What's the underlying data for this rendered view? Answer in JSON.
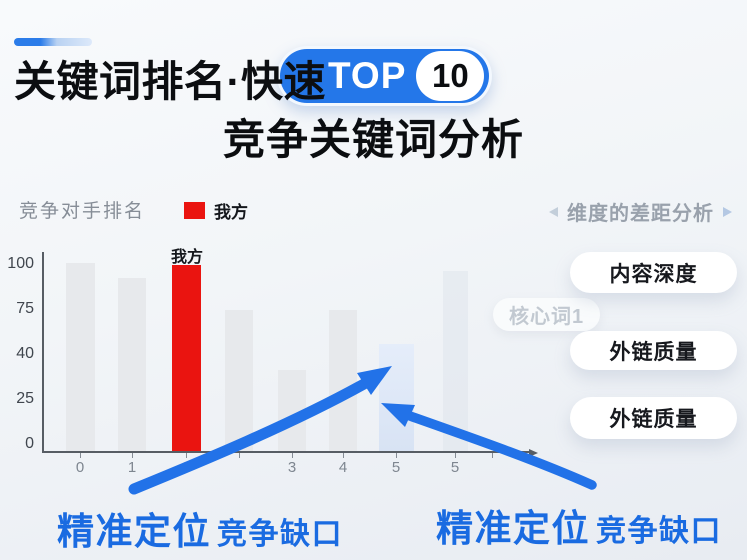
{
  "colors": {
    "accent_blue": "#2b7ce9",
    "badge_blue": "#2477e9",
    "arrow_blue": "#2272e8",
    "bar_red": "#ea1410",
    "bar_gray": "#e7e9ec",
    "bar_highlight": "#dce6f4",
    "bar_ghost": "#e9ecf0",
    "text_dark": "#0c0e11",
    "text_gray": "#868d97"
  },
  "header": {
    "title": "关键词排名·快速",
    "badge_label": "TOP",
    "badge_number": "10",
    "subtitle": "竞争关键词分析"
  },
  "chart_data": {
    "type": "bar",
    "title": "竞争对手排名",
    "legend": [
      {
        "label": "我方",
        "color": "#ea1410"
      }
    ],
    "legend_position": "top",
    "categories": [
      "0",
      "1",
      "2",
      "",
      "3",
      "4",
      "5",
      "5"
    ],
    "values": [
      100,
      92,
      99,
      75,
      43,
      75,
      57,
      96
    ],
    "colors": [
      "gray",
      "gray",
      "red",
      "gray",
      "gray",
      "gray",
      "highlight",
      "ghost"
    ],
    "bar_label": {
      "index": 2,
      "text": "我方"
    },
    "y_ticks": [
      "100",
      "75",
      "40",
      "25",
      "0"
    ],
    "ylim": [
      0,
      100
    ],
    "grid": false,
    "xlabel": "",
    "ylabel": ""
  },
  "dimension_panel": {
    "heading": "维度的差距分析",
    "ghost_pill": "核心词1",
    "pills": [
      {
        "label": "内容深度"
      },
      {
        "label": "外链质量"
      },
      {
        "label": "外链质量"
      }
    ]
  },
  "callouts": {
    "left": {
      "strong": "精准定位",
      "rest": "竞争缺口"
    },
    "right": {
      "strong": "精准定位",
      "rest": "竞争缺口"
    }
  }
}
